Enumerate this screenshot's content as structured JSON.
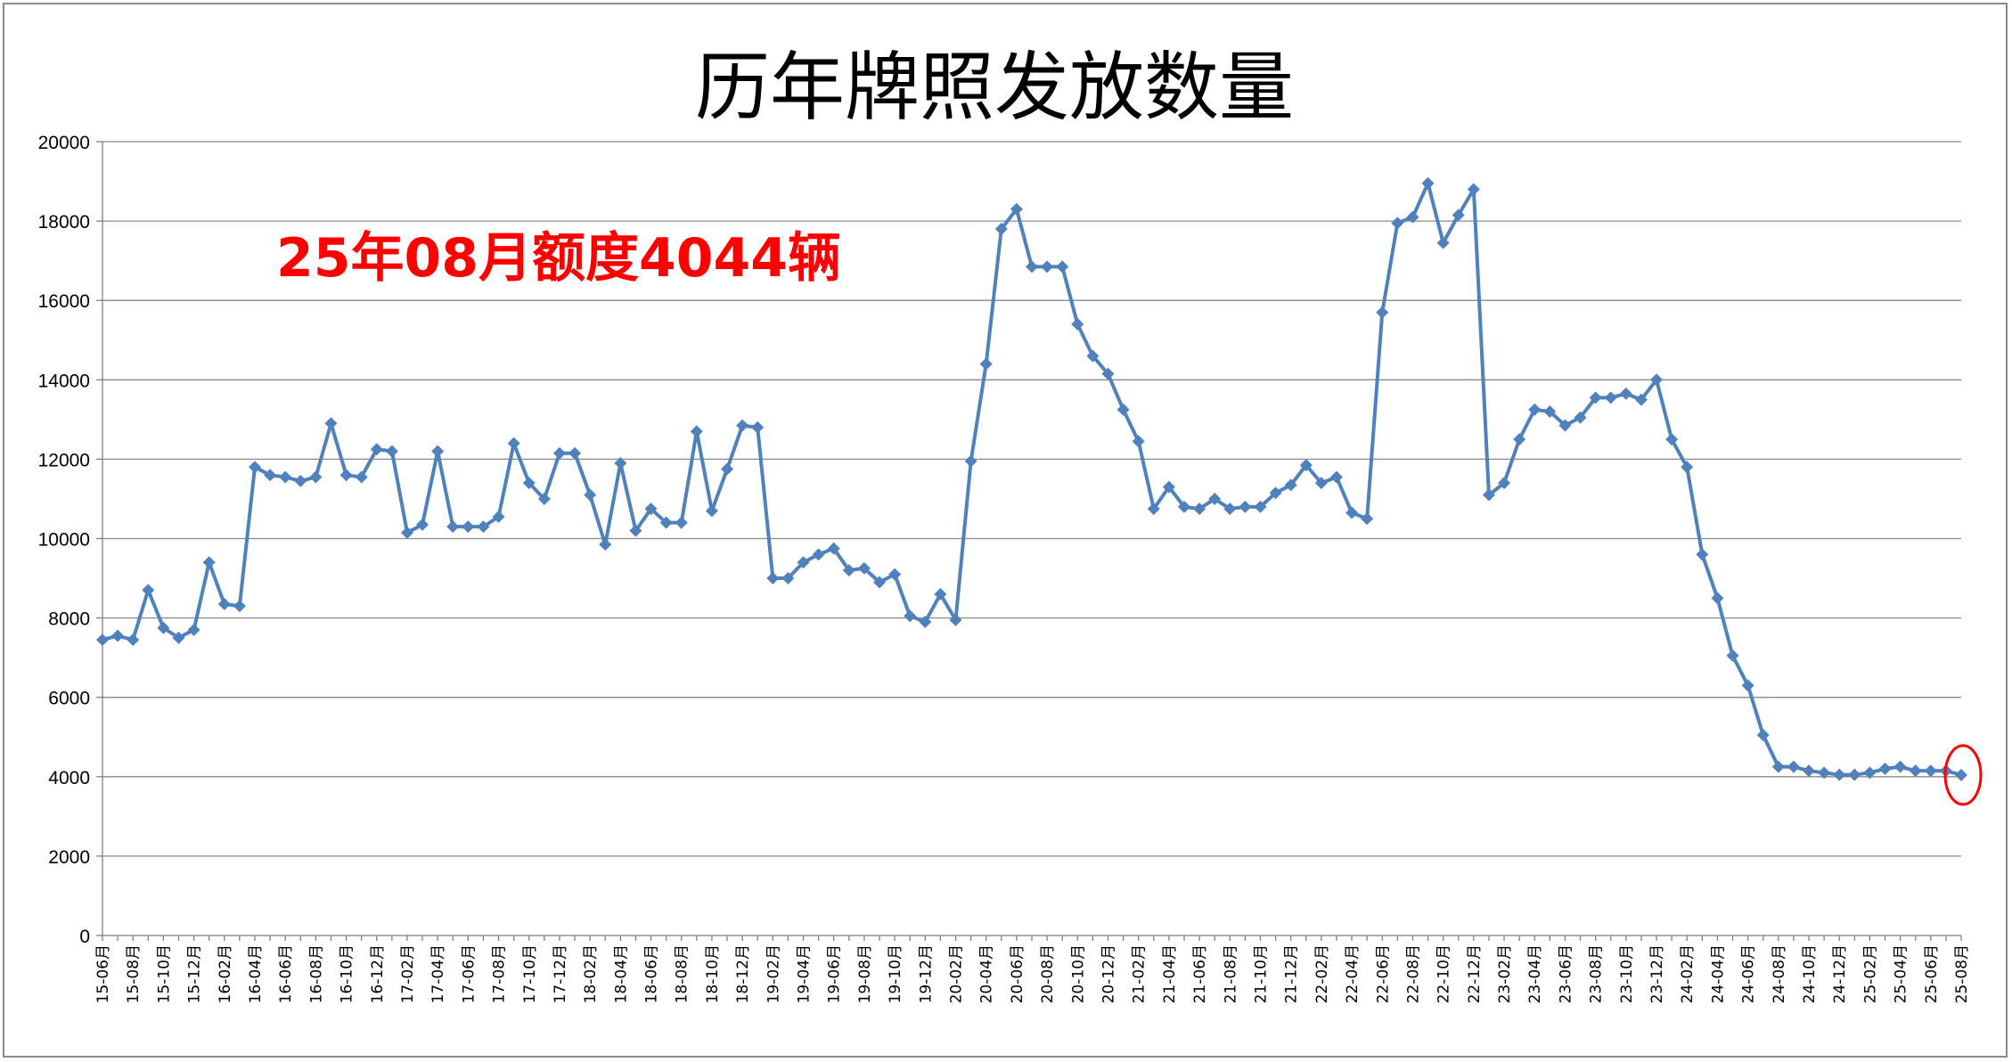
{
  "chart_data": {
    "type": "line",
    "title": "历年牌照发放数量",
    "annotation": "25年08月额度4044辆",
    "xlabel": "",
    "ylabel": "",
    "ylim": [
      0,
      20000
    ],
    "yticks": [
      0,
      2000,
      4000,
      6000,
      8000,
      10000,
      12000,
      14000,
      16000,
      18000,
      20000
    ],
    "grid": true,
    "legend": "none",
    "line_color": "#4f81bd",
    "highlight_color": "#ff0000",
    "categories": [
      "15-06月",
      "15-07月",
      "15-08月",
      "15-09月",
      "15-10月",
      "15-11月",
      "15-12月",
      "16-01月",
      "16-02月",
      "16-03月",
      "16-04月",
      "16-05月",
      "16-06月",
      "16-07月",
      "16-08月",
      "16-09月",
      "16-10月",
      "16-11月",
      "16-12月",
      "17-01月",
      "17-02月",
      "17-03月",
      "17-04月",
      "17-05月",
      "17-06月",
      "17-07月",
      "17-08月",
      "17-09月",
      "17-10月",
      "17-11月",
      "17-12月",
      "18-01月",
      "18-02月",
      "18-03月",
      "18-04月",
      "18-05月",
      "18-06月",
      "18-07月",
      "18-08月",
      "18-09月",
      "18-10月",
      "18-11月",
      "18-12月",
      "19-01月",
      "19-02月",
      "19-03月",
      "19-04月",
      "19-05月",
      "19-06月",
      "19-07月",
      "19-08月",
      "19-09月",
      "19-10月",
      "19-11月",
      "19-12月",
      "20-01月",
      "20-02月",
      "20-03月",
      "20-04月",
      "20-05月",
      "20-06月",
      "20-07月",
      "20-08月",
      "20-09月",
      "20-10月",
      "20-11月",
      "20-12月",
      "21-01月",
      "21-02月",
      "21-03月",
      "21-04月",
      "21-05月",
      "21-06月",
      "21-07月",
      "21-08月",
      "21-09月",
      "21-10月",
      "21-11月",
      "21-12月",
      "22-01月",
      "22-02月",
      "22-03月",
      "22-04月",
      "22-05月",
      "22-06月",
      "22-07月",
      "22-08月",
      "22-09月",
      "22-10月",
      "22-11月",
      "22-12月",
      "23-01月",
      "23-02月",
      "23-03月",
      "23-04月",
      "23-05月",
      "23-06月",
      "23-07月",
      "23-08月",
      "23-09月",
      "23-10月",
      "23-11月",
      "23-12月",
      "24-01月",
      "24-02月",
      "24-03月",
      "24-04月",
      "24-05月",
      "24-06月",
      "24-07月",
      "24-08月",
      "24-09月",
      "24-10月",
      "24-11月",
      "24-12月",
      "25-01月",
      "25-02月",
      "25-03月",
      "25-04月",
      "25-05月",
      "25-06月",
      "25-07月",
      "25-08月"
    ],
    "tick_labels": [
      "15-06月",
      "15-08月",
      "15-10月",
      "15-12月",
      "16-02月",
      "16-04月",
      "16-06月",
      "16-08月",
      "16-10月",
      "16-12月",
      "17-02月",
      "17-04月",
      "17-06月",
      "17-08月",
      "17-10月",
      "17-12月",
      "18-02月",
      "18-04月",
      "18-06月",
      "18-08月",
      "18-10月",
      "18-12月",
      "19-02月",
      "19-04月",
      "19-06月",
      "19-08月",
      "19-10月",
      "19-12月",
      "20-02月",
      "20-04月",
      "20-06月",
      "20-08月",
      "20-10月",
      "20-12月",
      "21-02月",
      "21-04月",
      "21-06月",
      "21-08月",
      "21-10月",
      "21-12月",
      "22-02月",
      "22-04月",
      "22-06月",
      "22-08月",
      "22-10月",
      "22-12月",
      "23-02月",
      "23-04月",
      "23-06月",
      "23-08月",
      "23-10月",
      "23-12月",
      "24-02月",
      "24-04月",
      "24-06月",
      "24-08月",
      "24-10月",
      "24-12月",
      "25-02月",
      "25-04月",
      "25-06月",
      "25-08月"
    ],
    "values": [
      7450,
      7550,
      7450,
      8700,
      7750,
      7500,
      7700,
      9400,
      8350,
      8300,
      11800,
      11600,
      11550,
      11450,
      11550,
      12900,
      11600,
      11550,
      12250,
      12200,
      10150,
      10350,
      12200,
      10300,
      10300,
      10300,
      10550,
      12400,
      11400,
      11000,
      12150,
      12150,
      11100,
      9850,
      11900,
      10200,
      10750,
      10400,
      10400,
      12700,
      10700,
      11750,
      12850,
      12800,
      9000,
      9000,
      9400,
      9600,
      9750,
      9200,
      9250,
      8900,
      9100,
      8050,
      7900,
      8600,
      7950,
      11950,
      14400,
      17800,
      18300,
      16850,
      16850,
      16850,
      15400,
      14600,
      14150,
      13250,
      12450,
      10750,
      11300,
      10800,
      10750,
      11000,
      10750,
      10800,
      10800,
      11150,
      11350,
      11850,
      11400,
      11550,
      10650,
      10500,
      15700,
      17950,
      18100,
      18950,
      17450,
      18150,
      18800,
      11100,
      11400,
      12500,
      13250,
      13200,
      12850,
      13050,
      13550,
      13550,
      13650,
      13500,
      14000,
      12500,
      11800,
      9600,
      8500,
      7050,
      6300,
      5050,
      4250,
      4250,
      4150,
      4100,
      4050,
      4050,
      4100,
      4200,
      4250,
      4150,
      4150,
      4150,
      4044
    ]
  }
}
